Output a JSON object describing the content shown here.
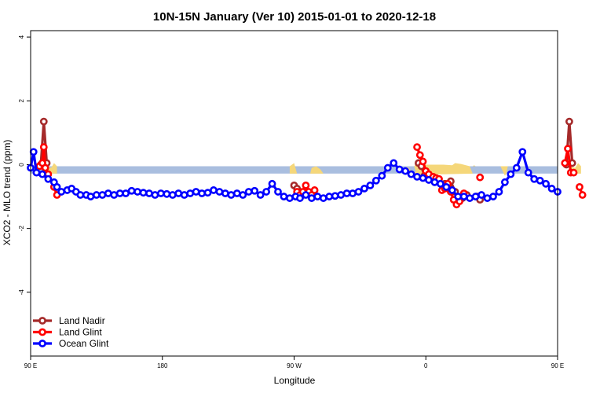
{
  "chart_data": {
    "type": "line",
    "title": "10N-15N January (Ver 10)   2015-01-01 to 2020-12-18",
    "xlabel": "Longitude",
    "ylabel": "XCO2 - MLO trend (ppm)",
    "xlim": [
      90,
      450
    ],
    "ylim": [
      -6,
      4.2
    ],
    "x_ticks": [
      {
        "value": 90,
        "label": "90 E"
      },
      {
        "value": 180,
        "label": "180"
      },
      {
        "value": 270,
        "label": "90 W"
      },
      {
        "value": 360,
        "label": "0"
      },
      {
        "value": 450,
        "label": "90 E"
      },
      {
        "value": 540,
        "label": "180"
      }
    ],
    "y_ticks": [
      {
        "value": 4,
        "label": "4"
      },
      {
        "value": 2,
        "label": "2"
      },
      {
        "value": 0,
        "label": "0"
      },
      {
        "value": -2,
        "label": "-2"
      },
      {
        "value": -4,
        "label": "-4"
      }
    ],
    "land_band": {
      "y_top": -0.05,
      "y_bottom": -0.28,
      "color": "#a9bedf"
    },
    "land_fill_color": "#f5d77a",
    "legend": {
      "position": "bottom-left"
    },
    "series": [
      {
        "name": "Land Nadir",
        "color": "#a52a2a",
        "segments": [
          [
            [
              97,
              0.0
            ],
            [
              99,
              1.35
            ],
            [
              101,
              0.05
            ]
          ],
          [
            [
              270,
              -0.65
            ],
            [
              272,
              -0.75
            ],
            [
              274,
              -0.85
            ],
            [
              276,
              -0.95
            ],
            [
              278,
              -0.9
            ]
          ],
          [
            [
              355,
              0.05
            ],
            [
              357,
              -0.05
            ],
            [
              359,
              -0.35
            ],
            [
              361,
              -0.38
            ],
            [
              363,
              -0.4
            ]
          ],
          [
            [
              373,
              -0.6
            ],
            [
              375,
              -0.7
            ],
            [
              377,
              -0.52
            ],
            [
              380,
              -0.85
            ],
            [
              382,
              -1.1
            ],
            [
              385,
              -1.05
            ],
            [
              388,
              -0.95
            ]
          ],
          [
            [
              395,
              -1.0
            ],
            [
              397,
              -1.1
            ]
          ],
          [
            [
              456,
              0.0
            ],
            [
              458,
              1.35
            ],
            [
              460,
              0.05
            ]
          ]
        ]
      },
      {
        "name": "Land Glint",
        "color": "#ff0000",
        "segments": [
          [
            [
              96,
              -0.05
            ],
            [
              98,
              0.05
            ],
            [
              99,
              0.55
            ],
            [
              100,
              -0.1
            ],
            [
              102,
              -0.3
            ]
          ],
          [
            [
              106,
              -0.7
            ],
            [
              108,
              -0.95
            ]
          ],
          [
            [
              272,
              -0.85
            ],
            [
              274,
              -0.95
            ],
            [
              276,
              -0.85
            ],
            [
              278,
              -0.65
            ],
            [
              280,
              -0.85
            ],
            [
              282,
              -0.95
            ],
            [
              284,
              -0.8
            ]
          ],
          [
            [
              354,
              0.55
            ],
            [
              356,
              0.3
            ],
            [
              358,
              0.1
            ],
            [
              360,
              -0.2
            ],
            [
              362,
              -0.3
            ],
            [
              365,
              -0.38
            ],
            [
              367,
              -0.42
            ],
            [
              369,
              -0.45
            ],
            [
              371,
              -0.8
            ],
            [
              373,
              -0.75
            ],
            [
              375,
              -0.6
            ],
            [
              377,
              -0.85
            ],
            [
              379,
              -1.1
            ],
            [
              381,
              -1.25
            ],
            [
              383,
              -1.15
            ],
            [
              386,
              -0.9
            ]
          ],
          [
            [
              397,
              -0.4
            ]
          ],
          [
            [
              455,
              0.05
            ],
            [
              457,
              0.5
            ],
            [
              459,
              -0.25
            ],
            [
              461,
              -0.25
            ]
          ],
          [
            [
              465,
              -0.7
            ],
            [
              467,
              -0.95
            ]
          ]
        ]
      },
      {
        "name": "Ocean Glint",
        "color": "#0000ff",
        "segments": [
          [
            [
              90,
              -0.1
            ],
            [
              92,
              0.4
            ],
            [
              94,
              -0.25
            ],
            [
              98,
              -0.3
            ],
            [
              102,
              -0.45
            ],
            [
              106,
              -0.55
            ],
            [
              108,
              -0.7
            ],
            [
              111,
              -0.85
            ],
            [
              115,
              -0.8
            ],
            [
              118,
              -0.75
            ],
            [
              121,
              -0.85
            ],
            [
              124,
              -0.95
            ],
            [
              128,
              -0.95
            ],
            [
              131,
              -1.0
            ],
            [
              135,
              -0.95
            ],
            [
              139,
              -0.95
            ],
            [
              143,
              -0.9
            ],
            [
              147,
              -0.95
            ],
            [
              151,
              -0.9
            ],
            [
              155,
              -0.9
            ],
            [
              159,
              -0.82
            ],
            [
              163,
              -0.85
            ],
            [
              167,
              -0.88
            ],
            [
              171,
              -0.9
            ],
            [
              175,
              -0.95
            ],
            [
              179,
              -0.9
            ],
            [
              183,
              -0.92
            ],
            [
              187,
              -0.95
            ],
            [
              191,
              -0.9
            ],
            [
              195,
              -0.95
            ],
            [
              199,
              -0.9
            ],
            [
              203,
              -0.85
            ],
            [
              207,
              -0.9
            ],
            [
              211,
              -0.88
            ],
            [
              215,
              -0.8
            ],
            [
              219,
              -0.85
            ],
            [
              223,
              -0.9
            ],
            [
              227,
              -0.95
            ],
            [
              231,
              -0.9
            ],
            [
              235,
              -0.95
            ],
            [
              239,
              -0.85
            ],
            [
              243,
              -0.82
            ],
            [
              247,
              -0.95
            ],
            [
              251,
              -0.85
            ],
            [
              255,
              -0.6
            ],
            [
              259,
              -0.85
            ],
            [
              263,
              -1.0
            ],
            [
              267,
              -1.05
            ],
            [
              271,
              -1.0
            ],
            [
              274,
              -1.05
            ],
            [
              278,
              -0.95
            ],
            [
              282,
              -1.05
            ],
            [
              286,
              -1.0
            ],
            [
              290,
              -1.05
            ],
            [
              294,
              -1.0
            ],
            [
              298,
              -0.98
            ],
            [
              302,
              -0.95
            ],
            [
              306,
              -0.9
            ],
            [
              310,
              -0.9
            ],
            [
              314,
              -0.85
            ],
            [
              318,
              -0.75
            ],
            [
              322,
              -0.65
            ],
            [
              326,
              -0.5
            ],
            [
              330,
              -0.35
            ],
            [
              334,
              -0.1
            ],
            [
              338,
              0.05
            ],
            [
              342,
              -0.15
            ],
            [
              346,
              -0.2
            ],
            [
              350,
              -0.3
            ],
            [
              354,
              -0.38
            ],
            [
              358,
              -0.42
            ],
            [
              362,
              -0.48
            ],
            [
              366,
              -0.55
            ],
            [
              370,
              -0.6
            ],
            [
              374,
              -0.7
            ],
            [
              378,
              -0.8
            ],
            [
              382,
              -1.0
            ],
            [
              386,
              -1.0
            ],
            [
              390,
              -1.05
            ],
            [
              394,
              -1.0
            ],
            [
              398,
              -0.95
            ],
            [
              402,
              -1.05
            ],
            [
              406,
              -1.0
            ],
            [
              410,
              -0.85
            ],
            [
              414,
              -0.55
            ],
            [
              418,
              -0.3
            ],
            [
              422,
              -0.1
            ],
            [
              426,
              0.4
            ],
            [
              430,
              -0.25
            ],
            [
              434,
              -0.45
            ],
            [
              438,
              -0.5
            ],
            [
              442,
              -0.6
            ],
            [
              446,
              -0.75
            ],
            [
              450,
              -0.85
            ]
          ]
        ]
      }
    ]
  }
}
